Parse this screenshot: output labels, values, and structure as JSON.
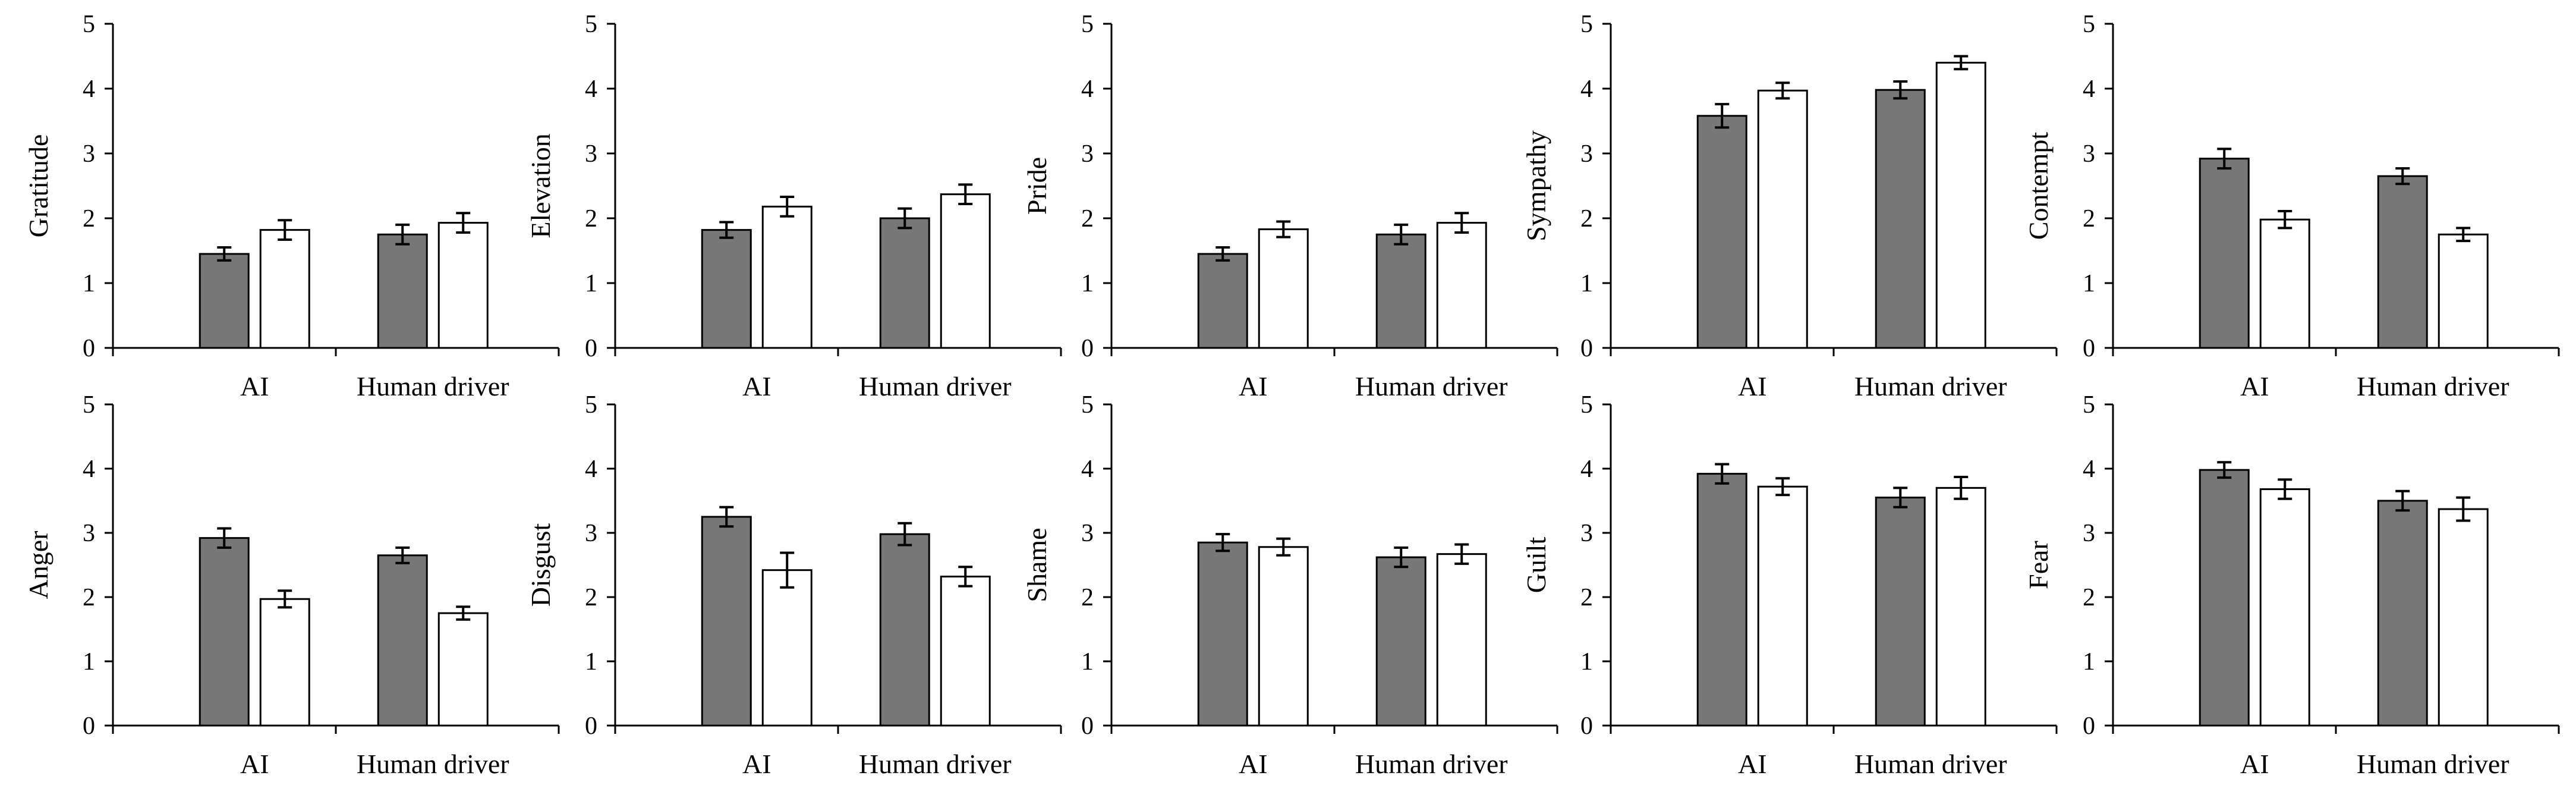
{
  "figure": {
    "categories": [
      "AI",
      "Human driver"
    ],
    "ylim": [
      0,
      5
    ],
    "yticks": [
      0,
      1,
      2,
      3,
      4,
      5
    ],
    "colors": {
      "series1": "#777777",
      "series2": "#ffffff",
      "stroke": "#000000"
    }
  },
  "chart_data": [
    {
      "type": "bar",
      "title": "",
      "xlabel": "",
      "ylabel": "Gratitude",
      "categories": [
        "AI",
        "Human driver"
      ],
      "ylim": [
        0,
        5
      ],
      "series": [
        {
          "name": "series1",
          "values": [
            1.45,
            1.75
          ],
          "errors": [
            0.1,
            0.15
          ]
        },
        {
          "name": "series2",
          "values": [
            1.82,
            1.93
          ],
          "errors": [
            0.15,
            0.15
          ]
        }
      ]
    },
    {
      "type": "bar",
      "title": "",
      "xlabel": "",
      "ylabel": "Elevation",
      "categories": [
        "AI",
        "Human driver"
      ],
      "ylim": [
        0,
        5
      ],
      "series": [
        {
          "name": "series1",
          "values": [
            1.82,
            2.0
          ],
          "errors": [
            0.12,
            0.15
          ]
        },
        {
          "name": "series2",
          "values": [
            2.18,
            2.37
          ],
          "errors": [
            0.15,
            0.15
          ]
        }
      ]
    },
    {
      "type": "bar",
      "title": "",
      "xlabel": "",
      "ylabel": "Pride",
      "categories": [
        "AI",
        "Human driver"
      ],
      "ylim": [
        0,
        5
      ],
      "series": [
        {
          "name": "series1",
          "values": [
            1.45,
            1.75
          ],
          "errors": [
            0.1,
            0.15
          ]
        },
        {
          "name": "series2",
          "values": [
            1.83,
            1.93
          ],
          "errors": [
            0.12,
            0.15
          ]
        }
      ]
    },
    {
      "type": "bar",
      "title": "",
      "xlabel": "",
      "ylabel": "Sympathy",
      "categories": [
        "AI",
        "Human driver"
      ],
      "ylim": [
        0,
        5
      ],
      "series": [
        {
          "name": "series1",
          "values": [
            3.58,
            3.98
          ],
          "errors": [
            0.18,
            0.13
          ]
        },
        {
          "name": "series2",
          "values": [
            3.97,
            4.4
          ],
          "errors": [
            0.12,
            0.1
          ]
        }
      ]
    },
    {
      "type": "bar",
      "title": "",
      "xlabel": "",
      "ylabel": "Contempt",
      "categories": [
        "AI",
        "Human driver"
      ],
      "ylim": [
        0,
        5
      ],
      "series": [
        {
          "name": "series1",
          "values": [
            2.92,
            2.65
          ],
          "errors": [
            0.15,
            0.12
          ]
        },
        {
          "name": "series2",
          "values": [
            1.98,
            1.75
          ],
          "errors": [
            0.13,
            0.1
          ]
        }
      ]
    },
    {
      "type": "bar",
      "title": "",
      "xlabel": "",
      "ylabel": "Anger",
      "categories": [
        "AI",
        "Human driver"
      ],
      "ylim": [
        0,
        5
      ],
      "series": [
        {
          "name": "series1",
          "values": [
            2.92,
            2.65
          ],
          "errors": [
            0.15,
            0.12
          ]
        },
        {
          "name": "series2",
          "values": [
            1.97,
            1.75
          ],
          "errors": [
            0.13,
            0.1
          ]
        }
      ]
    },
    {
      "type": "bar",
      "title": "",
      "xlabel": "",
      "ylabel": "Disgust",
      "categories": [
        "AI",
        "Human driver"
      ],
      "ylim": [
        0,
        5
      ],
      "series": [
        {
          "name": "series1",
          "values": [
            3.25,
            2.98
          ],
          "errors": [
            0.15,
            0.17
          ]
        },
        {
          "name": "series2",
          "values": [
            2.42,
            2.32
          ],
          "errors": [
            0.27,
            0.15
          ]
        }
      ]
    },
    {
      "type": "bar",
      "title": "",
      "xlabel": "",
      "ylabel": "Shame",
      "categories": [
        "AI",
        "Human driver"
      ],
      "ylim": [
        0,
        5
      ],
      "series": [
        {
          "name": "series1",
          "values": [
            2.85,
            2.62
          ],
          "errors": [
            0.13,
            0.15
          ]
        },
        {
          "name": "series2",
          "values": [
            2.78,
            2.67
          ],
          "errors": [
            0.13,
            0.15
          ]
        }
      ]
    },
    {
      "type": "bar",
      "title": "",
      "xlabel": "",
      "ylabel": "Guilt",
      "categories": [
        "AI",
        "Human driver"
      ],
      "ylim": [
        0,
        5
      ],
      "series": [
        {
          "name": "series1",
          "values": [
            3.92,
            3.55
          ],
          "errors": [
            0.15,
            0.15
          ]
        },
        {
          "name": "series2",
          "values": [
            3.72,
            3.7
          ],
          "errors": [
            0.13,
            0.17
          ]
        }
      ]
    },
    {
      "type": "bar",
      "title": "",
      "xlabel": "",
      "ylabel": "Fear",
      "categories": [
        "AI",
        "Human driver"
      ],
      "ylim": [
        0,
        5
      ],
      "series": [
        {
          "name": "series1",
          "values": [
            3.98,
            3.5
          ],
          "errors": [
            0.12,
            0.15
          ]
        },
        {
          "name": "series2",
          "values": [
            3.68,
            3.37
          ],
          "errors": [
            0.15,
            0.18
          ]
        }
      ]
    }
  ]
}
